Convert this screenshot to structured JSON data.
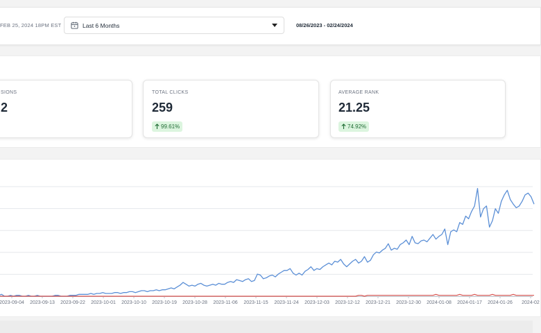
{
  "header": {
    "updated_text": "FEB 25, 2024 18PM EST",
    "period_select": {
      "value": "Last 6 Months",
      "icon": "calendar-icon"
    },
    "date_range": "08/26/2023 - 02/24/2024"
  },
  "stats": {
    "impressions": {
      "label": "SIONS",
      "value": "2"
    },
    "clicks": {
      "label": "TOTAL CLICKS",
      "value": "259",
      "change": "99.61%",
      "direction": "up"
    },
    "rank": {
      "label": "AVERAGE RANK",
      "value": "21.25",
      "change": "74.92%",
      "direction": "up"
    }
  },
  "colors": {
    "primary_series": "#5b8fd6",
    "secondary_series": "#d9534f",
    "positive_badge": "#dcf5df"
  },
  "chart_data": {
    "type": "line",
    "x_tick_labels": [
      "2023-09-04",
      "2023-09-13",
      "2023-09-22",
      "2023-10-01",
      "2023-10-10",
      "2023-10-19",
      "2023-10-28",
      "2023-11-06",
      "2023-11-15",
      "2023-11-24",
      "2023-12-03",
      "2023-12-12",
      "2023-12-21",
      "2023-12-30",
      "2024-01-08",
      "2024-01-17",
      "2024-01-26",
      "2024-02"
    ],
    "grid": true,
    "series": [
      {
        "color": "#5b8fd6",
        "values": [
          1,
          2,
          0,
          0,
          1,
          0,
          1,
          1,
          0,
          0,
          1,
          0,
          0,
          1,
          0,
          0,
          0,
          0,
          0,
          1,
          1,
          0,
          0,
          0,
          1,
          1,
          1,
          2,
          2,
          2,
          2,
          3,
          2,
          3,
          3,
          4,
          3,
          3,
          3,
          4,
          4,
          3,
          4,
          4,
          5,
          5,
          4,
          5,
          6,
          6,
          5,
          6,
          6,
          7,
          6,
          7,
          7,
          8,
          9,
          8,
          10,
          12,
          15,
          13,
          11,
          12,
          11,
          13,
          14,
          12,
          11,
          12,
          13,
          12,
          14,
          13,
          13,
          15,
          16,
          15,
          18,
          17,
          16,
          18,
          19,
          16,
          17,
          24,
          23,
          19,
          20,
          22,
          23,
          21,
          24,
          26,
          28,
          28,
          30,
          25,
          23,
          25,
          23,
          27,
          29,
          32,
          28,
          30,
          29,
          32,
          34,
          36,
          34,
          38,
          37,
          40,
          35,
          32,
          35,
          38,
          40,
          36,
          38,
          43,
          37,
          39,
          45,
          48,
          47,
          50,
          52,
          57,
          50,
          52,
          51,
          56,
          58,
          61,
          56,
          65,
          58,
          57,
          60,
          61,
          59,
          63,
          67,
          62,
          65,
          67,
          73,
          56,
          70,
          72,
          70,
          80,
          78,
          87,
          84,
          92,
          98,
          117,
          86,
          95,
          98,
          75,
          82,
          95,
          90,
          103,
          110,
          115,
          105,
          100,
          96,
          98,
          103,
          110,
          112,
          108,
          100
        ]
      },
      {
        "color": "#d9534f",
        "values": [
          0,
          0,
          0,
          0,
          0,
          0,
          0,
          0,
          0,
          0,
          0,
          0,
          0,
          0,
          0,
          0,
          0,
          0,
          0,
          0,
          0,
          0,
          0,
          0,
          0,
          0,
          0,
          0,
          0,
          0,
          0,
          0,
          0,
          0,
          0,
          0,
          0,
          0,
          0,
          0,
          0,
          0,
          0,
          0,
          0,
          0,
          0,
          0,
          0,
          0,
          0,
          0,
          0,
          0,
          0,
          0,
          0,
          0,
          0,
          0,
          0,
          0,
          0,
          0,
          0,
          0,
          0,
          0,
          0,
          0,
          0,
          0,
          0,
          0,
          0,
          0,
          0,
          0,
          0,
          0,
          0,
          0,
          0,
          0,
          0,
          0,
          0,
          0,
          0,
          0,
          0,
          0,
          0,
          0,
          0,
          0,
          0,
          0,
          0,
          0,
          0,
          0,
          0,
          0,
          0,
          0,
          0,
          0,
          0,
          0,
          0,
          0,
          0,
          0,
          0,
          0,
          0,
          0,
          0,
          0,
          0,
          1,
          1,
          0,
          1,
          1,
          1,
          1,
          1,
          1,
          1,
          1,
          1,
          1,
          1,
          1,
          1,
          1,
          1,
          1,
          1,
          1,
          1,
          1,
          1,
          1,
          1,
          2,
          1,
          1,
          1,
          1,
          1,
          1,
          1,
          2,
          1,
          1,
          1,
          1,
          2,
          1,
          1,
          1,
          1,
          1,
          2,
          1,
          1,
          1,
          1,
          1,
          1,
          2,
          1,
          1,
          1,
          1,
          1,
          1,
          1
        ]
      }
    ],
    "ylim": [
      0,
      125
    ]
  }
}
